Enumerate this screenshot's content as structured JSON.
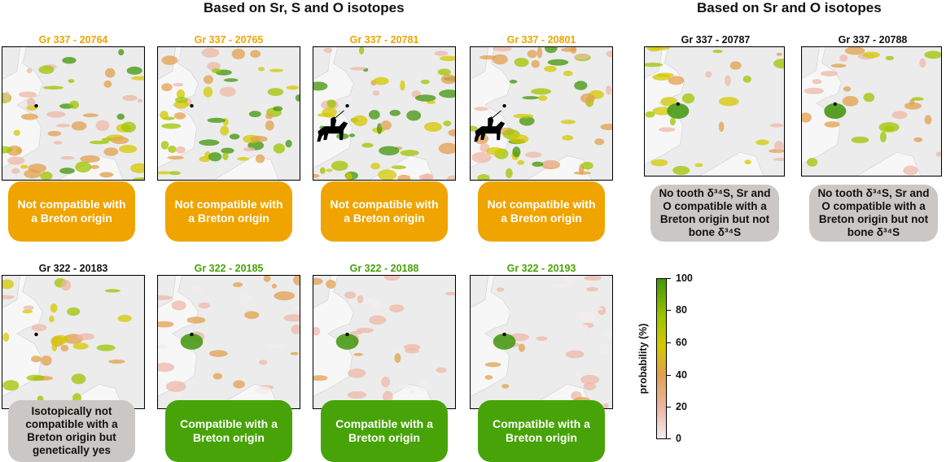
{
  "sections": {
    "left_title": "Based on Sr, S and O isotopes",
    "right_title": "Based on Sr and O isotopes"
  },
  "panels": [
    {
      "title": "Gr 337 - 20764",
      "title_color": "orange",
      "status_lines": [
        "Not compatible with",
        "a Breton origin"
      ],
      "status_color": "orange",
      "rider": false
    },
    {
      "title": "Gr 337 - 20765",
      "title_color": "orange",
      "status_lines": [
        "Not compatible with",
        "a Breton origin"
      ],
      "status_color": "orange",
      "rider": false
    },
    {
      "title": "Gr 337 - 20781",
      "title_color": "orange",
      "status_lines": [
        "Not compatible with",
        "a Breton origin"
      ],
      "status_color": "orange",
      "rider": true
    },
    {
      "title": "Gr 337 - 20801",
      "title_color": "orange",
      "status_lines": [
        "Not compatible with",
        "a Breton origin"
      ],
      "status_color": "orange",
      "rider": true
    },
    {
      "title": "Gr 337 - 20787",
      "title_color": "black",
      "status_lines": [
        "No tooth δ³⁴S, Sr and",
        "O compatible with a",
        "Breton origin but not",
        "bone δ³⁴S"
      ],
      "status_color": "grey",
      "rider": false
    },
    {
      "title": "Gr 337 - 20788",
      "title_color": "black",
      "status_lines": [
        "No tooth δ³⁴S, Sr and",
        "O compatible with a",
        "Breton origin but not",
        "bone δ³⁴S"
      ],
      "status_color": "grey",
      "rider": false
    },
    {
      "title": "Gr 322 - 20183",
      "title_color": "black",
      "status_lines": [
        "Isotopically not",
        "compatible with a",
        "Breton origin but",
        "genetically yes"
      ],
      "status_color": "grey",
      "rider": false
    },
    {
      "title": "Gr 322 - 20185",
      "title_color": "green",
      "status_lines": [
        "Compatible with a",
        "Breton origin"
      ],
      "status_color": "green",
      "rider": false
    },
    {
      "title": "Gr 322 - 20188",
      "title_color": "green",
      "status_lines": [
        "Compatible with a",
        "Breton origin"
      ],
      "status_color": "green",
      "rider": false
    },
    {
      "title": "Gr 322 - 20193",
      "title_color": "green",
      "status_lines": [
        "Compatible with a",
        "Breton origin"
      ],
      "status_color": "green",
      "rider": false
    }
  ],
  "legend": {
    "title": "probability (%)",
    "ticks": [
      "100",
      "80",
      "60",
      "40",
      "20",
      "0"
    ],
    "colors": {
      "low": "#f3eeee",
      "mid_low": "#eeb8a8",
      "mid": "#e1a04e",
      "mid_high": "#d4c800",
      "high": "#9fc400",
      "max": "#40960a"
    }
  },
  "colors": {
    "orange": "#f0a400",
    "green": "#47a307",
    "grey": "#cbc7c4",
    "black": "#111111"
  }
}
